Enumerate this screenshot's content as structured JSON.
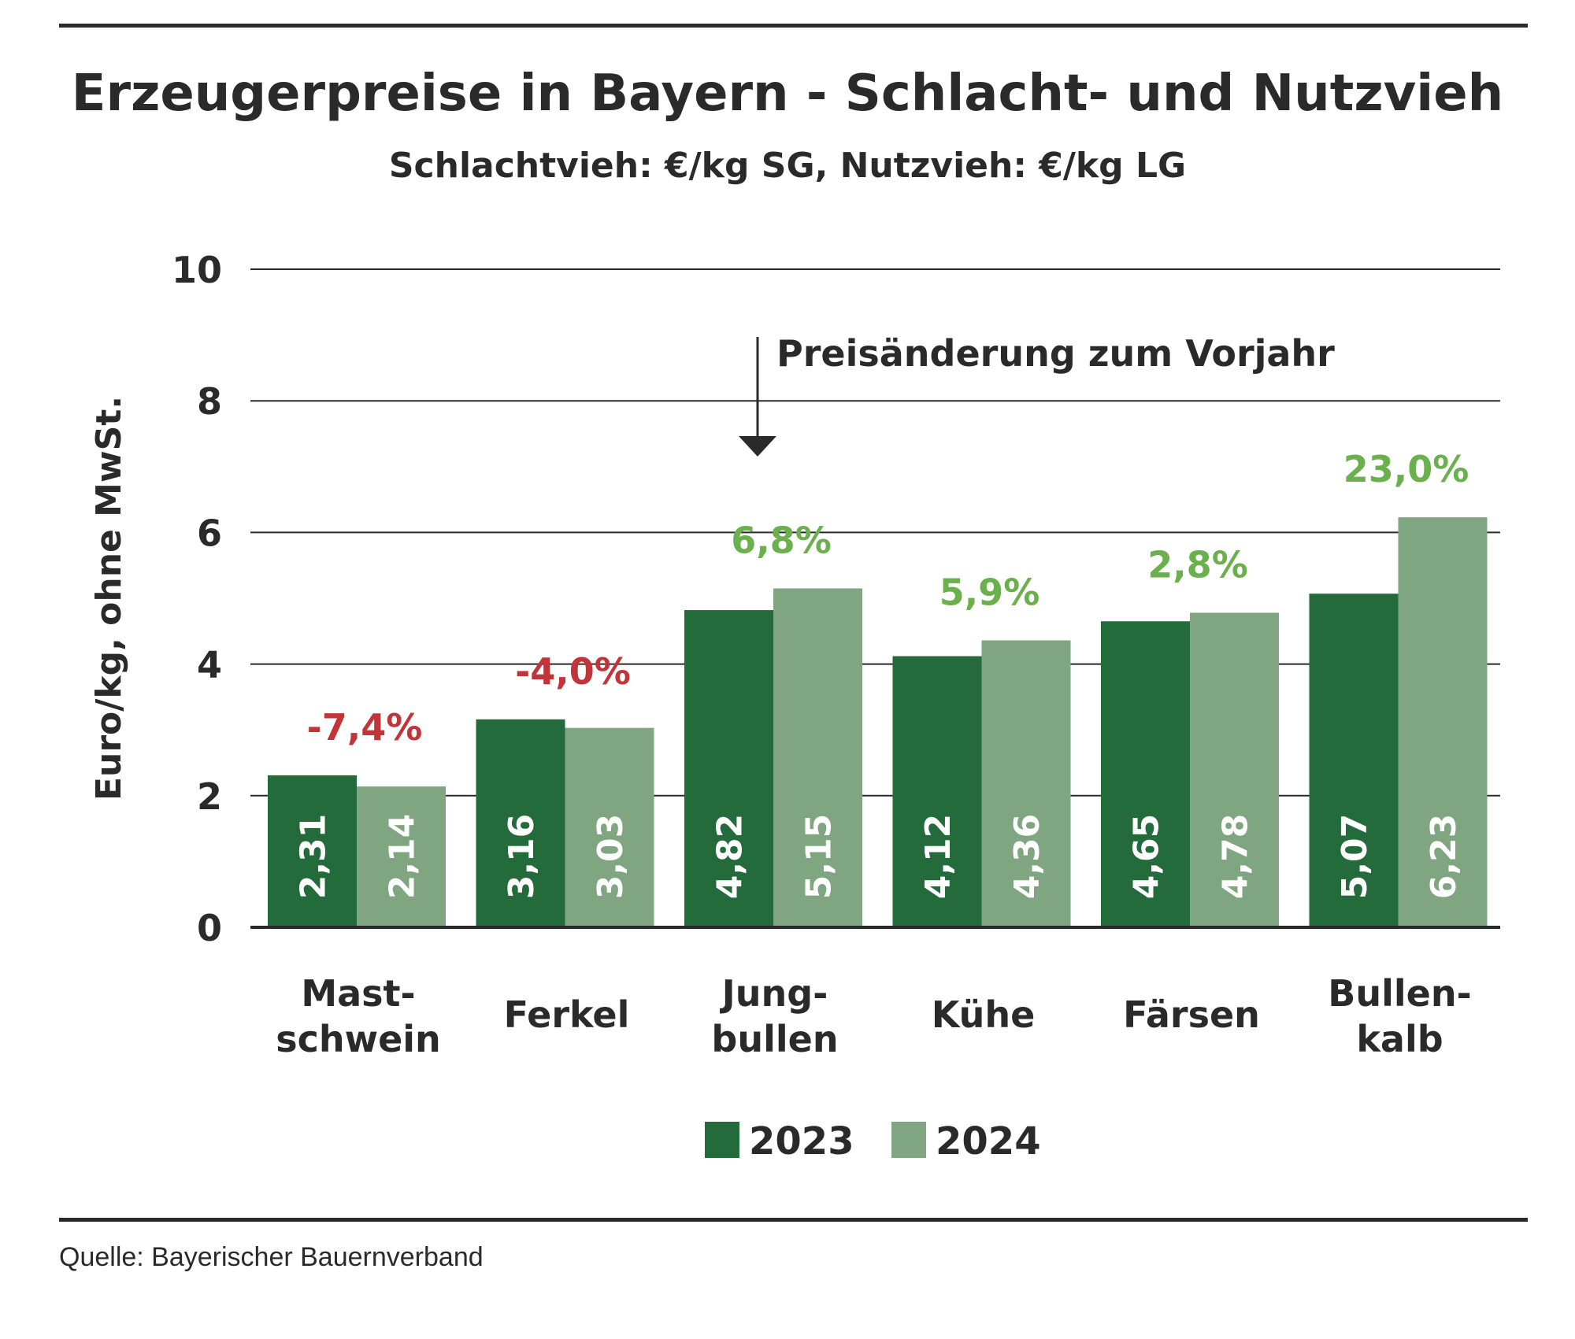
{
  "title": "Erzeugerpreise in Bayern - Schlacht- und Nutzvieh",
  "subtitle": "Schlachtvieh: €/kg SG, Nutzvieh: €/kg LG",
  "source": "Quelle: Bayerischer Bauernverband",
  "annotation": "Preisänderung zum Vorjahr",
  "colors": {
    "series_2023": "#246b3c",
    "series_2024": "#7fa581",
    "positive_change": "#6ab04c",
    "negative_change": "#c0343a",
    "gridline": "#2a2a2a",
    "text": "#2a2a2a"
  },
  "chart_data": {
    "type": "bar",
    "title": "Erzeugerpreise in Bayern - Schlacht- und Nutzvieh",
    "subtitle": "Schlachtvieh: €/kg SG, Nutzvieh: €/kg LG",
    "ylabel": "Euro/kg, ohne MwSt.",
    "xlabel": "",
    "ylim": [
      0,
      10
    ],
    "yticks": [
      "0",
      "2",
      "4",
      "6",
      "8",
      "10"
    ],
    "grid": true,
    "legend_position": "bottom-center",
    "categories": [
      [
        "Mast-",
        "schwein"
      ],
      [
        "Ferkel"
      ],
      [
        "Jung-",
        "bullen"
      ],
      [
        "Kühe"
      ],
      [
        "Färsen"
      ],
      [
        "Bullen-",
        "kalb"
      ]
    ],
    "series": [
      {
        "name": "2023",
        "values": [
          2.31,
          3.16,
          4.82,
          4.12,
          4.65,
          5.07
        ],
        "labels": [
          "2,31",
          "3,16",
          "4,82",
          "4,12",
          "4,65",
          "5,07"
        ]
      },
      {
        "name": "2024",
        "values": [
          2.14,
          3.03,
          5.15,
          4.36,
          4.78,
          6.23
        ],
        "labels": [
          "2,14",
          "3,03",
          "5,15",
          "4,36",
          "4,78",
          "6,23"
        ]
      }
    ],
    "changes": [
      {
        "text": "-7,4%",
        "value": -7.4
      },
      {
        "text": "-4,0%",
        "value": -4.0
      },
      {
        "text": "6,8%",
        "value": 6.8
      },
      {
        "text": "5,9%",
        "value": 5.9
      },
      {
        "text": "2,8%",
        "value": 2.8
      },
      {
        "text": "23,0%",
        "value": 23.0
      }
    ]
  }
}
